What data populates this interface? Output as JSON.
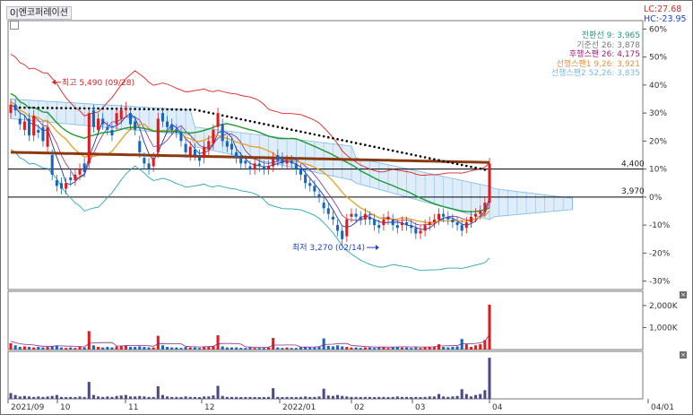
{
  "window": {
    "symbol_title": "0|엔코퍼레이션",
    "lc_label": "LC:27.68",
    "hc_label": "HC:-23.95"
  },
  "legend": [
    {
      "text": "전환선 9: 3,965",
      "color": "#1a9a8a"
    },
    {
      "text": "기준선 26: 3,878",
      "color": "#777777"
    },
    {
      "text": "후행스팬 26: 4,175",
      "color": "#a01a7a"
    },
    {
      "text": "선행스팬1 9,26: 3,921",
      "color": "#e3903f"
    },
    {
      "text": "선행스팬2 52,26: 3,835",
      "color": "#7ab8e8"
    }
  ],
  "colors": {
    "up_candle": "#e21a1a",
    "down_candle": "#1565c0",
    "ma_red": "#e02020",
    "ma_green": "#1e9a2e",
    "ma_orange": "#e8a020",
    "ma_blue": "#2233aa",
    "ma_purple": "#8a2a8a",
    "bollinger": "#2aa9b0",
    "long_ma": "#8b3a10",
    "dotted": "#000000",
    "cloud": "#7ab8e8",
    "volume_up": "#e21a1a",
    "volume_down": "#1565c0",
    "sub_bar": "#4a4a8a"
  },
  "annotations": {
    "high_label": "최고 5,490 (09/28)",
    "low_label": "최저 3,270 (02/14)",
    "line_4400": "4,400",
    "line_3970": "3,970"
  },
  "chart_data": {
    "type": "candlestick",
    "x_labels": [
      "2021/09",
      "10",
      "11",
      "12",
      "2022/01",
      "02",
      "03",
      "04",
      "04/01"
    ],
    "y_axis_labels": [
      "60%",
      "50%",
      "40%",
      "30%",
      "20%",
      "10%",
      "0%",
      "-10%",
      "-20%",
      "-30%"
    ],
    "y_range_percent": [
      -33,
      63
    ],
    "horizontal_lines": [
      {
        "label": "4,400",
        "percent": 10
      },
      {
        "label": "3,970",
        "percent": 0
      }
    ],
    "price_close_percent": [
      33,
      31,
      26,
      27,
      22,
      29,
      23,
      20,
      25,
      8,
      4,
      3,
      5,
      6,
      8,
      10,
      9,
      30,
      25,
      28,
      26,
      24,
      22,
      30,
      31,
      32,
      26,
      24,
      16,
      12,
      10,
      14,
      28,
      27,
      25,
      24,
      23,
      20,
      16,
      18,
      15,
      13,
      18,
      20,
      24,
      30,
      20,
      18,
      17,
      14,
      12,
      12,
      10,
      12,
      11,
      10,
      11,
      14,
      13,
      12,
      13,
      12,
      10,
      8,
      5,
      4,
      2,
      0,
      -4,
      -6,
      -8,
      -12,
      -15,
      -8,
      -6,
      -7,
      -8,
      -6,
      -8,
      -10,
      -11,
      -8,
      -7,
      -10,
      -11,
      -9,
      -10,
      -11,
      -13,
      -12,
      -10,
      -9,
      -8,
      -6,
      -7,
      -8,
      -9,
      -10,
      -12,
      -9,
      -7,
      -6,
      -5,
      -2,
      12
    ],
    "price_open_percent": [
      30,
      33,
      28,
      24,
      28,
      22,
      24,
      25,
      18,
      15,
      6,
      5,
      3,
      7,
      6,
      8,
      12,
      12,
      31,
      24,
      28,
      25,
      24,
      26,
      28,
      31,
      30,
      27,
      20,
      14,
      12,
      11,
      16,
      30,
      27,
      26,
      24,
      23,
      19,
      15,
      17,
      15,
      14,
      17,
      19,
      25,
      26,
      20,
      19,
      16,
      14,
      13,
      11,
      10,
      12,
      11,
      10,
      11,
      15,
      14,
      12,
      13,
      12,
      10,
      8,
      5,
      4,
      1,
      -2,
      -4,
      -7,
      -10,
      -12,
      -14,
      -7,
      -6,
      -7,
      -8,
      -7,
      -8,
      -10,
      -10,
      -8,
      -8,
      -10,
      -10,
      -9,
      -10,
      -11,
      -13,
      -12,
      -10,
      -9,
      -8,
      -6,
      -7,
      -8,
      -9,
      -10,
      -11,
      -9,
      -7,
      -6,
      -5,
      -2
    ],
    "volume_relative": [
      0.12,
      0.08,
      0.05,
      0.06,
      0.05,
      0.04,
      0.05,
      0.04,
      0.05,
      0.06,
      0.08,
      0.04,
      0.03,
      0.04,
      0.03,
      0.05,
      0.04,
      0.35,
      0.08,
      0.05,
      0.04,
      0.05,
      0.04,
      0.06,
      0.07,
      0.08,
      0.05,
      0.05,
      0.06,
      0.05,
      0.04,
      0.04,
      0.26,
      0.08,
      0.05,
      0.04,
      0.04,
      0.03,
      0.05,
      0.04,
      0.04,
      0.03,
      0.05,
      0.05,
      0.07,
      0.27,
      0.06,
      0.04,
      0.04,
      0.04,
      0.03,
      0.03,
      0.04,
      0.03,
      0.03,
      0.03,
      0.04,
      0.22,
      0.04,
      0.03,
      0.04,
      0.03,
      0.03,
      0.04,
      0.05,
      0.04,
      0.04,
      0.05,
      0.21,
      0.07,
      0.06,
      0.08,
      0.06,
      0.05,
      0.04,
      0.04,
      0.03,
      0.04,
      0.04,
      0.03,
      0.04,
      0.04,
      0.03,
      0.04,
      0.05,
      0.04,
      0.04,
      0.03,
      0.04,
      0.03,
      0.04,
      0.05,
      0.05,
      0.1,
      0.05,
      0.04,
      0.05,
      0.06,
      0.2,
      0.1,
      0.05,
      0.08,
      0.1,
      0.18,
      0.85
    ],
    "volume_axis_labels": [
      "2,000K",
      "1,000K"
    ],
    "volume_axis_values": [
      2000,
      1000
    ],
    "high": {
      "percent": 41,
      "label": "최고 5,490 (09/28)"
    },
    "low": {
      "percent": -18,
      "label": "최저 3,270 (02/14)"
    }
  }
}
